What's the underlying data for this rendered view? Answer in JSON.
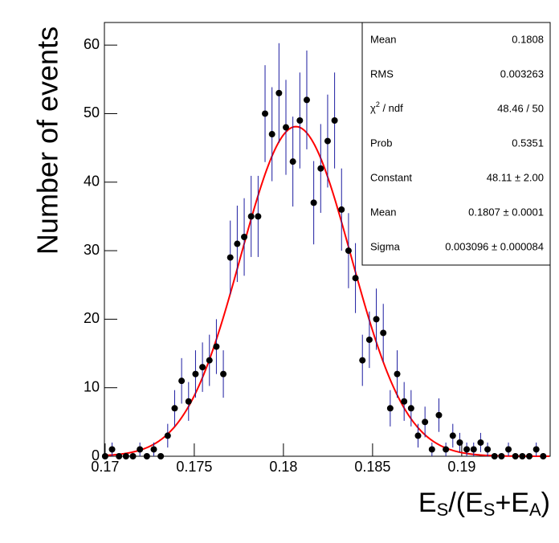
{
  "chart_data": {
    "type": "histogram-fit",
    "x_label_parts": [
      "E",
      "S",
      "/(E",
      "S",
      "+E",
      "A",
      ")"
    ],
    "y_label": "Number of events",
    "xlim": [
      0.16996,
      0.19496
    ],
    "ylim": [
      0,
      63.3
    ],
    "xticks": [
      0.17,
      0.175,
      0.18,
      0.185,
      0.19
    ],
    "yticks": [
      0,
      10,
      20,
      30,
      40,
      50,
      60
    ],
    "marker_color": "#000000",
    "error_color": "#1c1ca0",
    "x": [
      0.17,
      0.17039,
      0.17078,
      0.17117,
      0.17156,
      0.17195,
      0.17234,
      0.17273,
      0.17312,
      0.17351,
      0.1739,
      0.17429,
      0.17468,
      0.17507,
      0.17546,
      0.17585,
      0.17624,
      0.17663,
      0.17702,
      0.17741,
      0.1778,
      0.17819,
      0.17858,
      0.17897,
      0.17936,
      0.17975,
      0.18014,
      0.18053,
      0.18092,
      0.18131,
      0.1817,
      0.18209,
      0.18248,
      0.18287,
      0.18326,
      0.18365,
      0.18404,
      0.18443,
      0.18482,
      0.18521,
      0.1856,
      0.18599,
      0.18638,
      0.18677,
      0.18716,
      0.18755,
      0.18794,
      0.18833,
      0.18872,
      0.18911,
      0.1895,
      0.18989,
      0.19028,
      0.19067,
      0.19106,
      0.19145,
      0.19184,
      0.19223,
      0.19262,
      0.19301,
      0.1934,
      0.19379,
      0.19418,
      0.19457
    ],
    "values": [
      0,
      1,
      0,
      0,
      0,
      1,
      0,
      1,
      0,
      3,
      7,
      11,
      8,
      12,
      13,
      14,
      16,
      12,
      29,
      31,
      32,
      35,
      35,
      50,
      47,
      53,
      48,
      43,
      49,
      52,
      37,
      42,
      46,
      49,
      36,
      30,
      26,
      14,
      17,
      20,
      18,
      7,
      12,
      8,
      7,
      3,
      5,
      1,
      6,
      1,
      3,
      2,
      1,
      1,
      2,
      1,
      0,
      0,
      1,
      0,
      0,
      0,
      1,
      0
    ],
    "errors": [
      0,
      1,
      0,
      0,
      0,
      1,
      0,
      1,
      0,
      1.73,
      2.65,
      3.32,
      2.83,
      3.46,
      3.61,
      3.74,
      4,
      3.46,
      5.39,
      5.57,
      5.66,
      5.92,
      5.92,
      7.07,
      6.86,
      7.28,
      6.93,
      6.56,
      7,
      7.21,
      6.08,
      6.48,
      6.78,
      7,
      6,
      5.48,
      5.1,
      3.74,
      4.12,
      4.47,
      4.24,
      2.65,
      3.46,
      2.83,
      2.65,
      1.73,
      2.24,
      1,
      2.45,
      1,
      1.73,
      1.41,
      1,
      1,
      1.41,
      1,
      0,
      0,
      1,
      0,
      0,
      0,
      1,
      0
    ],
    "fit": {
      "constant": 48.11,
      "mean": 0.1807,
      "sigma": 0.003096,
      "color": "#ff0000"
    },
    "stats": [
      {
        "label": "Mean",
        "value": "0.1808"
      },
      {
        "label": "RMS",
        "value": "0.003263"
      },
      {
        "label_parts": [
          "χ",
          "2",
          " / ndf"
        ],
        "value": "48.46 / 50"
      },
      {
        "label": "Prob",
        "value": "0.5351"
      },
      {
        "label": "Constant",
        "value": "48.11 ± 2.00"
      },
      {
        "label": "Mean",
        "value": "0.1807 ± 0.0001"
      },
      {
        "label": "Sigma",
        "value": "0.003096 ± 0.000084"
      }
    ]
  }
}
